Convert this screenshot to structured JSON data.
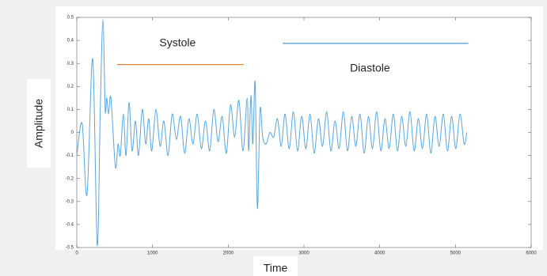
{
  "chart_data": {
    "type": "line",
    "x_label": "Time",
    "y_label": "Amplitude",
    "color": "#5aa5dc",
    "xlim": [
      0,
      6000
    ],
    "xticks": [
      0,
      1000,
      2000,
      3000,
      4000,
      5000,
      6000
    ],
    "ylim": [
      -0.5,
      0.5
    ],
    "yticks": [
      -0.5,
      -0.4,
      -0.3,
      -0.2,
      -0.1,
      0,
      0.1,
      0.2,
      0.3,
      0.4,
      0.5
    ],
    "x": [
      0,
      70,
      135,
      210,
      270,
      310,
      345,
      375,
      395,
      420,
      450,
      510,
      545,
      575,
      615,
      650,
      690,
      730,
      775,
      815,
      865,
      910,
      950,
      990,
      1045,
      1100,
      1150,
      1205,
      1260,
      1315,
      1370,
      1425,
      1480,
      1535,
      1590,
      1645,
      1700,
      1755,
      1810,
      1865,
      1920,
      1975,
      2030,
      2085,
      2140,
      2195,
      2250,
      2270,
      2300,
      2325,
      2355,
      2385,
      2420,
      2455,
      2500,
      2550,
      2600,
      2650,
      2700,
      2750,
      2805,
      2860,
      2915,
      2970,
      3025,
      3080,
      3135,
      3190,
      3245,
      3300,
      3355,
      3410,
      3465,
      3520,
      3575,
      3630,
      3685,
      3740,
      3795,
      3850,
      3905,
      3960,
      4015,
      4070,
      4125,
      4180,
      4235,
      4290,
      4345,
      4400,
      4455,
      4510,
      4565,
      4620,
      4675,
      4730,
      4785,
      4840,
      4895,
      4950,
      5005,
      5060,
      5115,
      5150
    ],
    "values": [
      -0.1,
      0.04,
      -0.27,
      0.32,
      -0.49,
      0.1,
      0.49,
      0.1,
      0.15,
      0.08,
      0.15,
      -0.15,
      -0.05,
      -0.1,
      0.08,
      -0.1,
      0.13,
      -0.08,
      0.05,
      -0.1,
      0.1,
      -0.05,
      0.06,
      -0.08,
      0.1,
      -0.06,
      0.05,
      -0.1,
      0.08,
      -0.03,
      0.07,
      -0.09,
      0.06,
      -0.05,
      0.08,
      -0.07,
      0.05,
      -0.08,
      0.1,
      -0.04,
      0.07,
      -0.09,
      0.12,
      -0.02,
      0.14,
      -0.08,
      0.15,
      -0.08,
      0.16,
      -0.05,
      0.22,
      -0.33,
      0.1,
      -0.02,
      -0.05,
      0.0,
      -0.02,
      0.06,
      -0.06,
      0.08,
      -0.07,
      0.09,
      -0.08,
      0.07,
      -0.07,
      0.08,
      -0.09,
      0.06,
      -0.06,
      0.09,
      -0.08,
      0.05,
      -0.07,
      0.09,
      -0.08,
      0.07,
      -0.06,
      0.08,
      -0.09,
      0.07,
      -0.07,
      0.09,
      -0.08,
      0.06,
      -0.07,
      0.08,
      -0.08,
      0.07,
      -0.06,
      0.09,
      -0.08,
      0.06,
      -0.07,
      0.08,
      -0.09,
      0.07,
      -0.06,
      0.08,
      -0.08,
      0.07,
      -0.07,
      0.08,
      -0.05,
      0.0
    ],
    "annotations": [
      {
        "text": "Systole",
        "x": [
          530,
          2200
        ],
        "y": 0.295,
        "color": "#e8803a"
      },
      {
        "text": "Diastole",
        "x": [
          2720,
          5170
        ],
        "y": 0.387,
        "color": "#4a9ad6"
      }
    ]
  }
}
